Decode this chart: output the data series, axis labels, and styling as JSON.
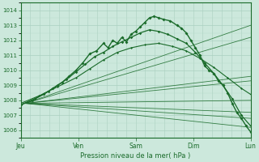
{
  "xlabel": "Pression niveau de la mer( hPa )",
  "ylim": [
    1005.5,
    1014.5
  ],
  "yticks": [
    1006,
    1007,
    1008,
    1009,
    1010,
    1011,
    1012,
    1013,
    1014
  ],
  "xtick_labels": [
    "Jeu",
    "Ven",
    "Sam",
    "Dim",
    "Lun"
  ],
  "xtick_pos": [
    0.0,
    0.25,
    0.5,
    0.75,
    1.0
  ],
  "bg_color": "#cce8dc",
  "grid_major_color": "#aad0c0",
  "grid_minor_color": "#b8dccb",
  "line_color": "#1a6b2a",
  "straight_lines": [
    {
      "x0": 0.02,
      "y0": 1007.8,
      "x1": 1.0,
      "y1": 1009.3
    },
    {
      "x0": 0.02,
      "y0": 1007.8,
      "x1": 1.0,
      "y1": 1009.6
    },
    {
      "x0": 0.02,
      "y0": 1007.8,
      "x1": 1.0,
      "y1": 1012.2
    },
    {
      "x0": 0.02,
      "y0": 1007.8,
      "x1": 1.0,
      "y1": 1013.0
    },
    {
      "x0": 0.02,
      "y0": 1007.8,
      "x1": 1.0,
      "y1": 1006.2
    },
    {
      "x0": 0.02,
      "y0": 1007.8,
      "x1": 1.0,
      "y1": 1006.8
    },
    {
      "x0": 0.02,
      "y0": 1007.8,
      "x1": 1.0,
      "y1": 1007.2
    },
    {
      "x0": 0.02,
      "y0": 1007.8,
      "x1": 1.0,
      "y1": 1008.0
    }
  ],
  "main_line_points_x": [
    0.0,
    0.05,
    0.1,
    0.14,
    0.18,
    0.21,
    0.24,
    0.27,
    0.3,
    0.33,
    0.36,
    0.38,
    0.4,
    0.42,
    0.44,
    0.46,
    0.48,
    0.5,
    0.52,
    0.54,
    0.56,
    0.58,
    0.6,
    0.62,
    0.65,
    0.68,
    0.7,
    0.72,
    0.74,
    0.76,
    0.78,
    0.8,
    0.82,
    0.84,
    0.86,
    0.88,
    0.9,
    0.92,
    0.94,
    0.96,
    0.98,
    1.0
  ],
  "main_line_points_y": [
    1007.7,
    1008.0,
    1008.4,
    1008.8,
    1009.2,
    1009.6,
    1010.0,
    1010.5,
    1011.1,
    1011.3,
    1011.8,
    1011.5,
    1012.0,
    1011.8,
    1012.2,
    1011.9,
    1012.4,
    1012.6,
    1012.9,
    1013.2,
    1013.5,
    1013.6,
    1013.5,
    1013.4,
    1013.3,
    1013.0,
    1012.8,
    1012.5,
    1012.0,
    1011.5,
    1011.0,
    1010.3,
    1010.0,
    1009.8,
    1009.3,
    1009.0,
    1008.5,
    1007.8,
    1007.2,
    1006.8,
    1006.3,
    1005.9
  ],
  "second_line_points_x": [
    0.0,
    0.06,
    0.12,
    0.16,
    0.2,
    0.24,
    0.28,
    0.32,
    0.36,
    0.4,
    0.44,
    0.48,
    0.52,
    0.56,
    0.6,
    0.64,
    0.68,
    0.72,
    0.76,
    0.8,
    0.84,
    0.88,
    0.92,
    0.96,
    1.0
  ],
  "second_line_points_y": [
    1007.7,
    1008.1,
    1008.6,
    1009.0,
    1009.4,
    1009.9,
    1010.4,
    1010.9,
    1011.2,
    1011.6,
    1011.9,
    1012.2,
    1012.5,
    1012.7,
    1012.6,
    1012.4,
    1012.1,
    1011.8,
    1011.2,
    1010.5,
    1009.8,
    1009.0,
    1008.1,
    1007.0,
    1006.3
  ],
  "third_line_points_x": [
    0.0,
    0.08,
    0.16,
    0.24,
    0.3,
    0.36,
    0.42,
    0.48,
    0.54,
    0.6,
    0.66,
    0.72,
    0.78,
    0.84,
    0.9,
    0.96,
    1.0
  ],
  "third_line_points_y": [
    1007.8,
    1008.3,
    1008.9,
    1009.5,
    1010.1,
    1010.7,
    1011.2,
    1011.5,
    1011.7,
    1011.8,
    1011.6,
    1011.3,
    1010.8,
    1010.2,
    1009.5,
    1008.8,
    1008.4
  ]
}
